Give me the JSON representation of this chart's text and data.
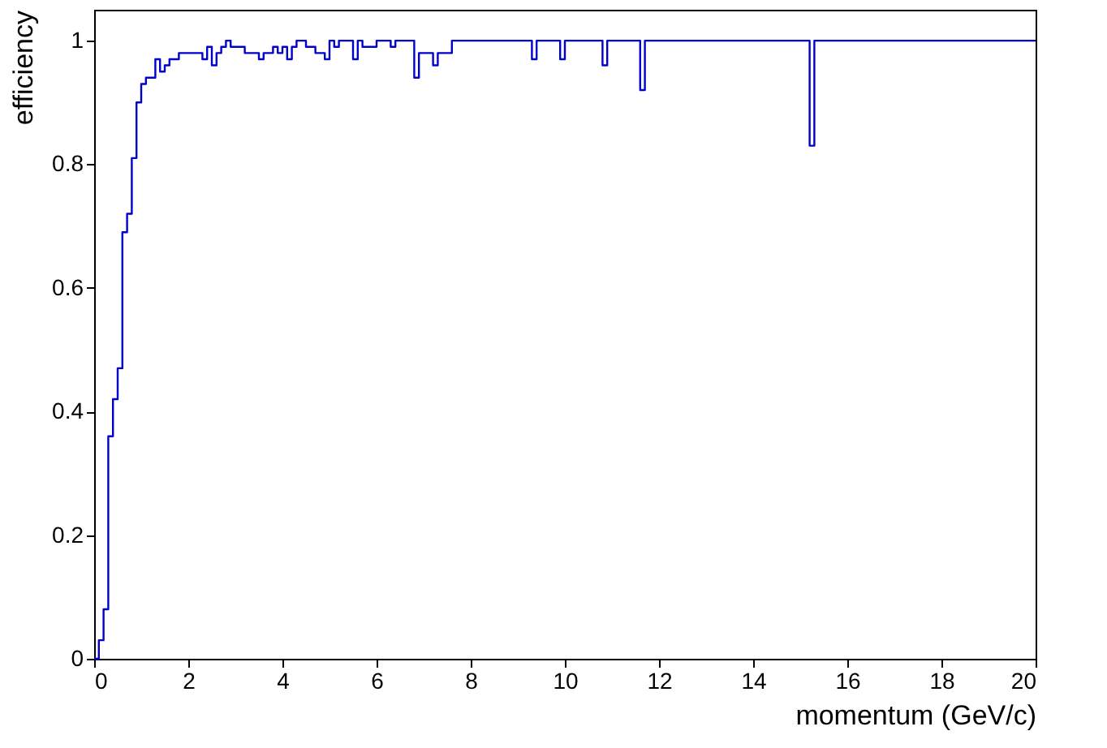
{
  "chart_data": {
    "type": "histogram",
    "xlabel": "momentum (GeV/c)",
    "ylabel": "efficiency",
    "bins": [
      0,
      0.1,
      0.2,
      0.3,
      0.4,
      0.5,
      0.6,
      0.7,
      0.8,
      0.9,
      1,
      1.1,
      1.2,
      1.3,
      1.4,
      1.5,
      1.6,
      1.7,
      1.8,
      1.9,
      2,
      2.1,
      2.2,
      2.3,
      2.4,
      2.5,
      2.6,
      2.7,
      2.8,
      2.9,
      3,
      3.1,
      3.2,
      3.3,
      3.4,
      3.5,
      3.6,
      3.7,
      3.8,
      3.9,
      4,
      4.1,
      4.2,
      4.3,
      4.4,
      4.5,
      4.6,
      4.7,
      4.8,
      4.9,
      5,
      5.1,
      5.2,
      5.3,
      5.4,
      5.5,
      5.6,
      5.7,
      5.8,
      5.9,
      6,
      6.1,
      6.2,
      6.3,
      6.4,
      6.5,
      6.6,
      6.7,
      6.8,
      6.9,
      7,
      7.1,
      7.2,
      7.3,
      7.4,
      7.5,
      7.6,
      7.7,
      7.8,
      7.9,
      8,
      8.1,
      8.2,
      8.3,
      8.4,
      8.5,
      8.6,
      8.7,
      8.8,
      8.9,
      9,
      9.1,
      9.2,
      9.3,
      9.4,
      9.5,
      9.6,
      9.7,
      9.8,
      9.9,
      10,
      10.1,
      10.2,
      10.3,
      10.4,
      10.5,
      10.6,
      10.7,
      10.8,
      10.9,
      11,
      11.1,
      11.2,
      11.3,
      11.4,
      11.5,
      11.6,
      11.7,
      11.8,
      11.9,
      12,
      12.1,
      12.2,
      12.3,
      12.4,
      12.5,
      12.6,
      12.7,
      12.8,
      12.9,
      13,
      13.1,
      13.2,
      13.3,
      13.4,
      13.5,
      13.6,
      13.7,
      13.8,
      13.9,
      14,
      14.1,
      14.2,
      14.3,
      14.4,
      14.5,
      14.6,
      14.7,
      14.8,
      14.9,
      15,
      15.1,
      15.2,
      15.3,
      15.4,
      15.5,
      15.6,
      15.7,
      15.8,
      15.9,
      16,
      16.1,
      16.2,
      16.3,
      16.4,
      16.5,
      16.6,
      16.7,
      16.8,
      16.9,
      17,
      17.1,
      17.2,
      17.3,
      17.4,
      17.5,
      17.6,
      17.7,
      17.8,
      17.9,
      18,
      18.1,
      18.2,
      18.3,
      18.4,
      18.5,
      18.6,
      18.7,
      18.8,
      18.9,
      19,
      19.1,
      19.2,
      19.3,
      19.4,
      19.5,
      19.6,
      19.7,
      19.8,
      19.9,
      20
    ],
    "values": [
      0,
      0.03,
      0.08,
      0.36,
      0.42,
      0.47,
      0.69,
      0.72,
      0.81,
      0.9,
      0.93,
      0.94,
      0.94,
      0.97,
      0.95,
      0.96,
      0.97,
      0.97,
      0.98,
      0.98,
      0.98,
      0.98,
      0.98,
      0.97,
      0.99,
      0.96,
      0.98,
      0.99,
      1,
      0.99,
      0.99,
      0.99,
      0.98,
      0.98,
      0.98,
      0.97,
      0.98,
      0.98,
      0.99,
      0.98,
      0.99,
      0.97,
      0.99,
      1,
      1,
      0.99,
      0.99,
      0.98,
      0.98,
      0.97,
      1,
      0.99,
      1,
      1,
      1,
      0.97,
      1,
      0.99,
      0.99,
      0.99,
      1,
      1,
      1,
      0.99,
      1,
      1,
      1,
      1,
      0.94,
      0.98,
      0.98,
      0.98,
      0.96,
      0.98,
      0.98,
      0.98,
      1,
      1,
      1,
      1,
      1,
      1,
      1,
      1,
      1,
      1,
      1,
      1,
      1,
      1,
      1,
      1,
      1,
      0.97,
      1,
      1,
      1,
      1,
      1,
      0.97,
      1,
      1,
      1,
      1,
      1,
      1,
      1,
      1,
      0.96,
      1,
      1,
      1,
      1,
      1,
      1,
      1,
      0.92,
      1,
      1,
      1,
      1,
      1,
      1,
      1,
      1,
      1,
      1,
      1,
      1,
      1,
      1,
      1,
      1,
      1,
      1,
      1,
      1,
      1,
      1,
      1,
      1,
      1,
      1,
      1,
      1,
      1,
      1,
      1,
      1,
      1,
      1,
      1,
      0.83,
      1,
      1,
      1,
      1,
      1,
      1,
      1,
      1,
      1,
      1,
      1,
      1,
      1,
      1,
      1,
      1,
      1,
      1,
      1,
      1,
      1,
      1,
      1,
      1,
      1,
      1,
      1,
      1,
      1,
      1,
      1,
      1,
      1,
      1,
      1,
      1,
      1,
      1,
      1,
      1,
      1,
      1,
      1,
      1,
      1,
      1,
      1
    ],
    "color": "#0000cc",
    "xlim": [
      0,
      20
    ],
    "xticks": [
      0,
      2,
      4,
      6,
      8,
      10,
      12,
      14,
      16,
      18,
      20
    ],
    "ylim": [
      0,
      1.05
    ],
    "yticks": [
      {
        "value": 0,
        "label": "0"
      },
      0.2,
      0.4,
      0.6,
      0.8,
      {
        "value": 1,
        "label": "1"
      }
    ],
    "grid": false
  }
}
